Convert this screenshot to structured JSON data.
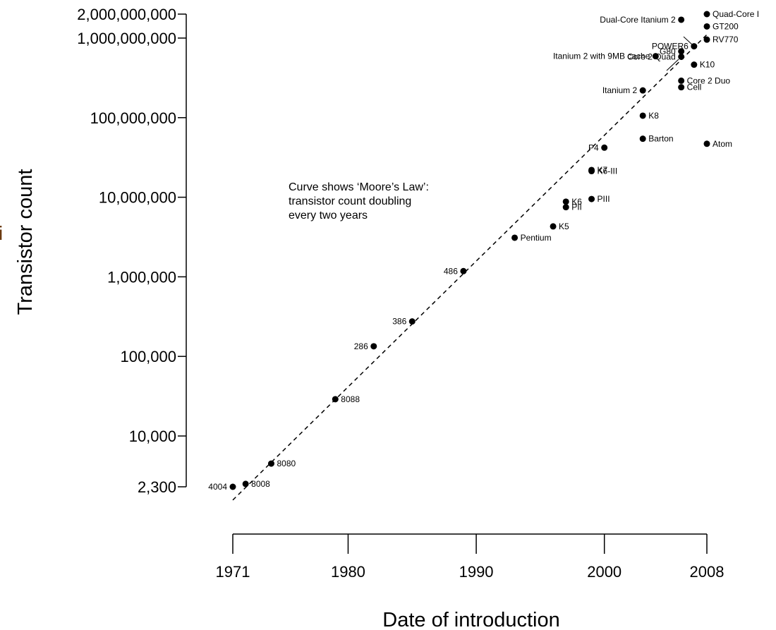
{
  "chart_data": {
    "type": "scatter",
    "xlabel": "Date of introduction",
    "ylabel": "Transistor count",
    "y_scale": "log",
    "x_ticks": [
      1971,
      1980,
      1990,
      2000,
      2008
    ],
    "x_tick_labels": [
      "1971",
      "1980",
      "1990",
      "2000",
      "2008"
    ],
    "y_ticks": [
      2300,
      10000,
      100000,
      1000000,
      10000000,
      100000000,
      1000000000,
      2000000000
    ],
    "y_tick_labels": [
      "2,300",
      "10,000",
      "100,000",
      "1,000,000",
      "10,000,000",
      "100,000,000",
      "1,000,000,000",
      "2,000,000,000"
    ],
    "xlim": [
      1971,
      2008
    ],
    "ylim": [
      2300,
      2000000000
    ],
    "annotation": [
      "Curve shows ‘Moore’s Law’:",
      "transistor count doubling",
      "every two years"
    ],
    "trend_line": {
      "style": "dashed",
      "from": [
        1971,
        2000
      ],
      "to": [
        2008,
        1300000000
      ]
    },
    "points": [
      {
        "name": "4004",
        "x": 1971,
        "y": 2300,
        "label_side": "left"
      },
      {
        "name": "8008",
        "x": 1972,
        "y": 2500,
        "label_side": "right"
      },
      {
        "name": "8080",
        "x": 1974,
        "y": 4500,
        "label_side": "right"
      },
      {
        "name": "8088",
        "x": 1979,
        "y": 29000,
        "label_side": "right"
      },
      {
        "name": "286",
        "x": 1982,
        "y": 134000,
        "label_side": "left"
      },
      {
        "name": "386",
        "x": 1985,
        "y": 275000,
        "label_side": "left"
      },
      {
        "name": "486",
        "x": 1989,
        "y": 1180000,
        "label_side": "left"
      },
      {
        "name": "Pentium",
        "x": 1993,
        "y": 3100000,
        "label_side": "right"
      },
      {
        "name": "K5",
        "x": 1996,
        "y": 4300000,
        "label_side": "right"
      },
      {
        "name": "K6",
        "x": 1997,
        "y": 8800000,
        "label_side": "right"
      },
      {
        "name": "PII",
        "x": 1997,
        "y": 7500000,
        "label_side": "right"
      },
      {
        "name": "PIII",
        "x": 1999,
        "y": 9500000,
        "label_side": "right"
      },
      {
        "name": "K6-III",
        "x": 1999,
        "y": 21300000,
        "label_side": "right"
      },
      {
        "name": "K7",
        "x": 1999,
        "y": 22000000,
        "label_side": "right"
      },
      {
        "name": "P4",
        "x": 2000,
        "y": 42000000,
        "label_side": "left"
      },
      {
        "name": "Barton",
        "x": 2003,
        "y": 54300000,
        "label_side": "right"
      },
      {
        "name": "Atom",
        "x": 2008,
        "y": 47000000,
        "label_side": "right"
      },
      {
        "name": "K8",
        "x": 2003,
        "y": 105900000,
        "label_side": "right"
      },
      {
        "name": "Itanium 2",
        "x": 2003,
        "y": 220000000,
        "label_side": "left"
      },
      {
        "name": "Cell",
        "x": 2006,
        "y": 241000000,
        "label_side": "right"
      },
      {
        "name": "Core 2 Duo",
        "x": 2006,
        "y": 291000000,
        "label_side": "right"
      },
      {
        "name": "K10",
        "x": 2007,
        "y": 463000000,
        "label_side": "right"
      },
      {
        "name": "Core 2 Quad",
        "x": 2006,
        "y": 582000000,
        "label_side": "left"
      },
      {
        "name": "G80",
        "x": 2006,
        "y": 681000000,
        "label_side": "left"
      },
      {
        "name": "Itanium 2 with 9MB cache",
        "x": 2004,
        "y": 592000000,
        "label_side": "left"
      },
      {
        "name": "POWER6",
        "x": 2007,
        "y": 789000000,
        "label_side": "left"
      },
      {
        "name": "RV770",
        "x": 2008,
        "y": 956000000,
        "label_side": "right"
      },
      {
        "name": "GT200",
        "x": 2008,
        "y": 1400000000,
        "label_side": "right"
      },
      {
        "name": "Dual-Core Itanium 2",
        "x": 2006,
        "y": 1700000000,
        "label_side": "left"
      },
      {
        "name": "Quad-Core I",
        "x": 2008,
        "y": 2000000000,
        "label_side": "right"
      }
    ]
  },
  "stray_glyph": "i"
}
